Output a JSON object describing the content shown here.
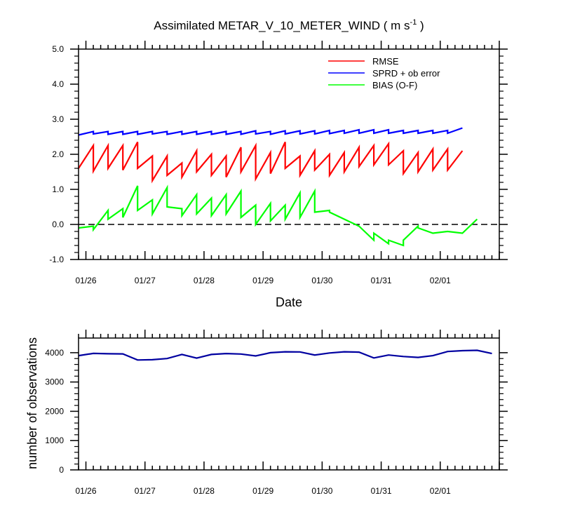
{
  "title": {
    "prefix": "Assimilated METAR_V_10_METER_WIND ( m s",
    "superscript": "-1",
    "suffix": " )"
  },
  "date_labels": [
    "01/26",
    "01/27",
    "01/28",
    "01/29",
    "01/30",
    "01/31",
    "02/01"
  ],
  "chart_data": [
    {
      "id": "top",
      "type": "line",
      "xlabel": "Date",
      "ylabel": "",
      "x_range": [
        -0.125,
        7.0
      ],
      "ylim": [
        -1.0,
        5.0
      ],
      "y_ticks": [
        -1.0,
        0.0,
        1.0,
        2.0,
        3.0,
        4.0,
        5.0
      ],
      "y_tick_labels": [
        "-1.0",
        "0.0",
        "1.0",
        "2.0",
        "3.0",
        "4.0",
        "5.0"
      ],
      "zero_line": true,
      "legend_position": "top-right",
      "series": [
        {
          "name": "RMSE",
          "color": "#ff0000",
          "points": [
            [
              -0.125,
              1.6
            ],
            [
              0.125,
              2.25
            ],
            [
              0.125,
              1.52
            ],
            [
              0.375,
              2.25
            ],
            [
              0.375,
              1.6
            ],
            [
              0.625,
              2.25
            ],
            [
              0.625,
              1.55
            ],
            [
              0.875,
              2.35
            ],
            [
              0.875,
              1.6
            ],
            [
              1.125,
              1.95
            ],
            [
              1.125,
              1.25
            ],
            [
              1.375,
              1.95
            ],
            [
              1.375,
              1.4
            ],
            [
              1.625,
              1.75
            ],
            [
              1.625,
              1.35
            ],
            [
              1.875,
              2.1
            ],
            [
              1.875,
              1.5
            ],
            [
              2.125,
              2.0
            ],
            [
              2.125,
              1.4
            ],
            [
              2.375,
              1.95
            ],
            [
              2.375,
              1.35
            ],
            [
              2.625,
              2.2
            ],
            [
              2.625,
              1.5
            ],
            [
              2.875,
              2.25
            ],
            [
              2.875,
              1.3
            ],
            [
              3.125,
              2.05
            ],
            [
              3.125,
              1.45
            ],
            [
              3.375,
              2.35
            ],
            [
              3.375,
              1.6
            ],
            [
              3.625,
              1.95
            ],
            [
              3.625,
              1.4
            ],
            [
              3.875,
              2.1
            ],
            [
              3.875,
              1.55
            ],
            [
              4.125,
              2.0
            ],
            [
              4.125,
              1.4
            ],
            [
              4.375,
              2.05
            ],
            [
              4.375,
              1.5
            ],
            [
              4.625,
              2.2
            ],
            [
              4.625,
              1.65
            ],
            [
              4.875,
              2.25
            ],
            [
              4.875,
              1.7
            ],
            [
              5.125,
              2.3
            ],
            [
              5.125,
              1.7
            ],
            [
              5.375,
              2.1
            ],
            [
              5.375,
              1.45
            ],
            [
              5.625,
              2.05
            ],
            [
              5.625,
              1.5
            ],
            [
              5.875,
              2.15
            ],
            [
              5.875,
              1.55
            ],
            [
              6.125,
              2.15
            ],
            [
              6.125,
              1.55
            ],
            [
              6.375,
              2.1
            ]
          ]
        },
        {
          "name": "SPRD + ob error",
          "color": "#0000ff",
          "points": [
            [
              -0.125,
              2.55
            ],
            [
              0.125,
              2.65
            ],
            [
              0.125,
              2.58
            ],
            [
              0.375,
              2.65
            ],
            [
              0.375,
              2.57
            ],
            [
              0.625,
              2.65
            ],
            [
              0.625,
              2.57
            ],
            [
              0.875,
              2.65
            ],
            [
              0.875,
              2.57
            ],
            [
              1.125,
              2.65
            ],
            [
              1.125,
              2.58
            ],
            [
              1.375,
              2.65
            ],
            [
              1.375,
              2.57
            ],
            [
              1.625,
              2.65
            ],
            [
              1.625,
              2.57
            ],
            [
              1.875,
              2.65
            ],
            [
              1.875,
              2.57
            ],
            [
              2.125,
              2.65
            ],
            [
              2.125,
              2.57
            ],
            [
              2.375,
              2.65
            ],
            [
              2.375,
              2.57
            ],
            [
              2.625,
              2.65
            ],
            [
              2.625,
              2.57
            ],
            [
              2.875,
              2.67
            ],
            [
              2.875,
              2.58
            ],
            [
              3.125,
              2.65
            ],
            [
              3.125,
              2.57
            ],
            [
              3.375,
              2.67
            ],
            [
              3.375,
              2.58
            ],
            [
              3.625,
              2.67
            ],
            [
              3.625,
              2.58
            ],
            [
              3.875,
              2.67
            ],
            [
              3.875,
              2.58
            ],
            [
              4.125,
              2.68
            ],
            [
              4.125,
              2.59
            ],
            [
              4.375,
              2.68
            ],
            [
              4.375,
              2.6
            ],
            [
              4.625,
              2.7
            ],
            [
              4.625,
              2.6
            ],
            [
              4.875,
              2.7
            ],
            [
              4.875,
              2.6
            ],
            [
              5.125,
              2.7
            ],
            [
              5.125,
              2.6
            ],
            [
              5.375,
              2.68
            ],
            [
              5.375,
              2.6
            ],
            [
              5.625,
              2.68
            ],
            [
              5.625,
              2.6
            ],
            [
              5.875,
              2.68
            ],
            [
              5.875,
              2.6
            ],
            [
              6.125,
              2.68
            ],
            [
              6.125,
              2.6
            ],
            [
              6.375,
              2.75
            ]
          ]
        },
        {
          "name": "BIAS (O-F)",
          "color": "#00ff00",
          "points": [
            [
              -0.125,
              -0.1
            ],
            [
              0.125,
              -0.05
            ],
            [
              0.125,
              -0.15
            ],
            [
              0.375,
              0.4
            ],
            [
              0.375,
              0.15
            ],
            [
              0.625,
              0.45
            ],
            [
              0.625,
              0.2
            ],
            [
              0.875,
              1.1
            ],
            [
              0.875,
              0.4
            ],
            [
              1.125,
              0.7
            ],
            [
              1.125,
              0.3
            ],
            [
              1.375,
              1.05
            ],
            [
              1.375,
              0.5
            ],
            [
              1.625,
              0.45
            ],
            [
              1.625,
              0.25
            ],
            [
              1.875,
              0.85
            ],
            [
              1.875,
              0.3
            ],
            [
              2.125,
              0.75
            ],
            [
              2.125,
              0.25
            ],
            [
              2.375,
              0.85
            ],
            [
              2.375,
              0.3
            ],
            [
              2.625,
              0.95
            ],
            [
              2.625,
              0.2
            ],
            [
              2.875,
              0.55
            ],
            [
              2.875,
              0.0
            ],
            [
              3.125,
              0.6
            ],
            [
              3.125,
              0.1
            ],
            [
              3.375,
              0.55
            ],
            [
              3.375,
              0.15
            ],
            [
              3.625,
              0.9
            ],
            [
              3.625,
              0.2
            ],
            [
              3.875,
              0.95
            ],
            [
              3.875,
              0.35
            ],
            [
              4.125,
              0.4
            ],
            [
              4.125,
              0.35
            ],
            [
              4.375,
              0.15
            ],
            [
              4.375,
              0.15
            ],
            [
              4.625,
              -0.05
            ],
            [
              4.875,
              -0.45
            ],
            [
              4.875,
              -0.25
            ],
            [
              5.125,
              -0.55
            ],
            [
              5.125,
              -0.45
            ],
            [
              5.375,
              -0.6
            ],
            [
              5.375,
              -0.45
            ],
            [
              5.625,
              -0.05
            ],
            [
              5.625,
              -0.1
            ],
            [
              5.875,
              -0.25
            ],
            [
              6.125,
              -0.2
            ],
            [
              6.375,
              -0.25
            ],
            [
              6.375,
              -0.25
            ],
            [
              6.625,
              0.15
            ]
          ]
        }
      ]
    },
    {
      "id": "bottom",
      "type": "line",
      "xlabel": "",
      "ylabel": "number of observations",
      "x_range": [
        -0.125,
        7.0
      ],
      "ylim": [
        0,
        4500
      ],
      "y_ticks": [
        0,
        1000,
        2000,
        3000,
        4000
      ],
      "y_tick_labels": [
        "0",
        "1000",
        "2000",
        "3000",
        "4000"
      ],
      "series": [
        {
          "name": "number of observations",
          "color": "#0000a0",
          "points": [
            [
              -0.125,
              3900
            ],
            [
              0.125,
              3975
            ],
            [
              0.375,
              3965
            ],
            [
              0.625,
              3960
            ],
            [
              0.875,
              3750
            ],
            [
              1.125,
              3760
            ],
            [
              1.375,
              3800
            ],
            [
              1.625,
              3940
            ],
            [
              1.875,
              3815
            ],
            [
              2.125,
              3940
            ],
            [
              2.375,
              3970
            ],
            [
              2.625,
              3955
            ],
            [
              2.875,
              3890
            ],
            [
              3.125,
              4000
            ],
            [
              3.375,
              4030
            ],
            [
              3.625,
              4025
            ],
            [
              3.875,
              3920
            ],
            [
              4.125,
              3990
            ],
            [
              4.375,
              4030
            ],
            [
              4.625,
              4020
            ],
            [
              4.875,
              3820
            ],
            [
              5.125,
              3920
            ],
            [
              5.375,
              3870
            ],
            [
              5.625,
              3840
            ],
            [
              5.875,
              3900
            ],
            [
              6.125,
              4040
            ],
            [
              6.375,
              4070
            ],
            [
              6.625,
              4080
            ],
            [
              6.875,
              3970
            ]
          ]
        }
      ]
    }
  ]
}
